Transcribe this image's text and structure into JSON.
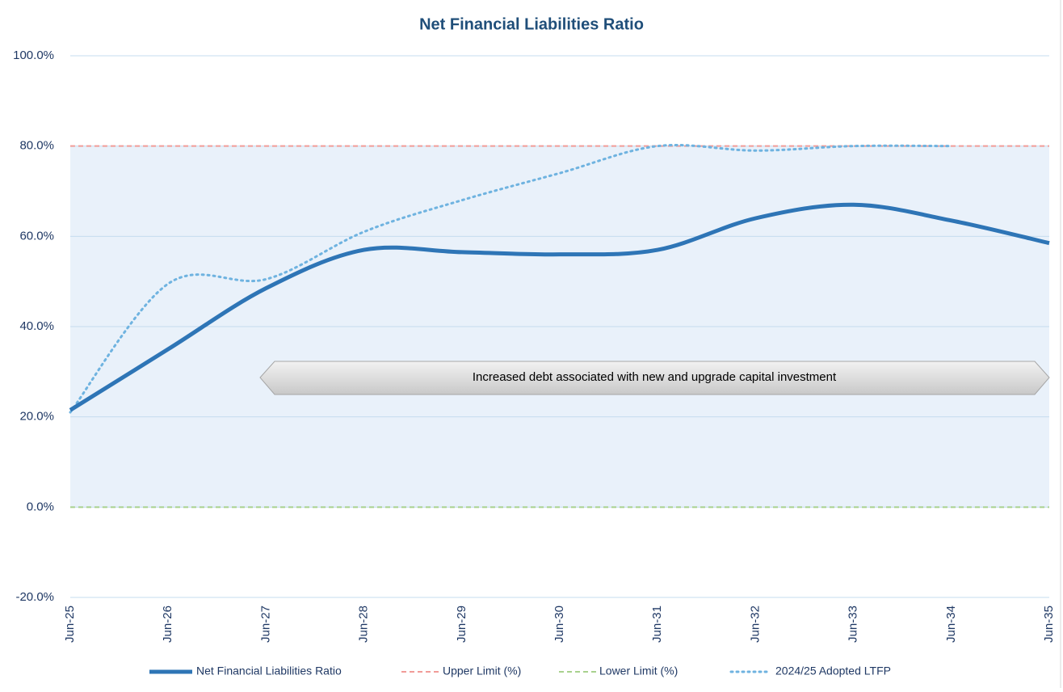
{
  "chart_data": {
    "type": "line",
    "title": "Net Financial Liabilities Ratio",
    "categories": [
      "Jun-25",
      "Jun-26",
      "Jun-27",
      "Jun-28",
      "Jun-29",
      "Jun-30",
      "Jun-31",
      "Jun-32",
      "Jun-33",
      "Jun-34",
      "Jun-35"
    ],
    "series": [
      {
        "name": "Net Financial Liabilities Ratio",
        "color": "#2e75b6",
        "dash": "solid",
        "values": [
          21.5,
          35,
          48.5,
          57,
          56.5,
          56,
          57,
          64,
          67,
          63.5,
          58.5
        ]
      },
      {
        "name": "Upper Limit (%)",
        "color": "#f19c98",
        "dash": "dashed",
        "values": [
          80,
          80,
          80,
          80,
          80,
          80,
          80,
          80,
          80,
          80,
          80
        ]
      },
      {
        "name": "Lower Limit (%)",
        "color": "#a9d18e",
        "dash": "dashed",
        "values": [
          0,
          0,
          0,
          0,
          0,
          0,
          0,
          0,
          0,
          0,
          0
        ]
      },
      {
        "name": "2024/25 Adopted LTFP",
        "color": "#6fb3e0",
        "dash": "dotted",
        "values": [
          21,
          49.5,
          50.5,
          61,
          68,
          74,
          80,
          79,
          80,
          80,
          null
        ]
      }
    ],
    "ylim": [
      -20,
      100
    ],
    "yticks": [
      {
        "value": -20,
        "label": "-20.0%"
      },
      {
        "value": 0,
        "label": "0.0%"
      },
      {
        "value": 20,
        "label": "20.0%"
      },
      {
        "value": 40,
        "label": "40.0%"
      },
      {
        "value": 60,
        "label": "60.0%"
      },
      {
        "value": 80,
        "label": "80.0%"
      },
      {
        "value": 100,
        "label": "100.0%"
      }
    ],
    "grid": true,
    "legend": "bottom",
    "annotation": "Increased debt associated with new and upgrade capital investment"
  }
}
